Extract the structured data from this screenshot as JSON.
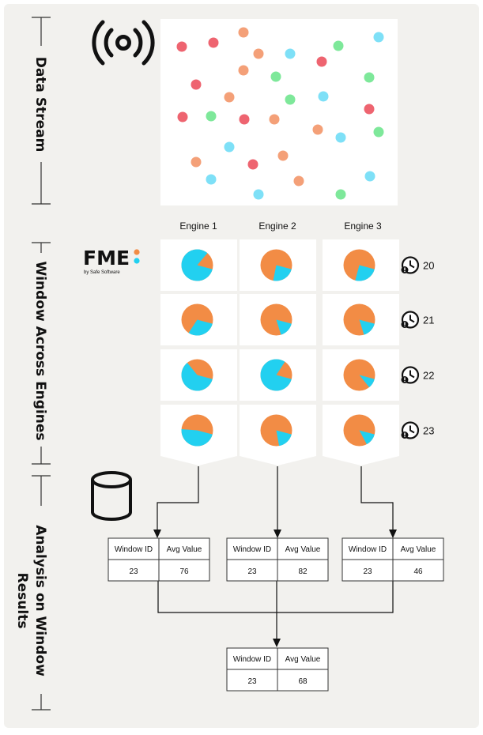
{
  "sections": {
    "data_stream": "Data Stream",
    "window": "Window Across Engines",
    "analysis_line1": "Analysis on Window",
    "analysis_line2": "Results"
  },
  "engines": [
    "Engine 1",
    "Engine 2",
    "Engine 3"
  ],
  "fme_logo": {
    "text": "FME",
    "subtitle": "by Safe Software"
  },
  "windows": [
    {
      "id": "20",
      "fractions": [
        0.82,
        0.24,
        0.25
      ]
    },
    {
      "id": "21",
      "fractions": [
        0.3,
        0.16,
        0.16
      ]
    },
    {
      "id": "22",
      "fractions": [
        0.6,
        0.8,
        0.1
      ]
    },
    {
      "id": "23",
      "fractions": [
        0.47,
        0.18,
        0.13
      ]
    }
  ],
  "tables": {
    "headers": [
      "Window ID",
      "Avg Value"
    ],
    "engine_results": [
      {
        "window_id": "23",
        "avg_value": "76"
      },
      {
        "window_id": "23",
        "avg_value": "82"
      },
      {
        "window_id": "23",
        "avg_value": "46"
      }
    ],
    "final_result": {
      "window_id": "23",
      "avg_value": "68"
    }
  },
  "colors": {
    "orange": "#f28c45",
    "cyan": "#22d0f0",
    "panel": "#f2f1ee",
    "dot_red": "#ee6470",
    "dot_orange": "#f4a078",
    "dot_cyan": "#7ee0f7",
    "dot_green": "#7ee89a"
  },
  "icons": [
    "broadcast-icon",
    "fme-logo",
    "clock-alert-icon",
    "database-icon"
  ]
}
